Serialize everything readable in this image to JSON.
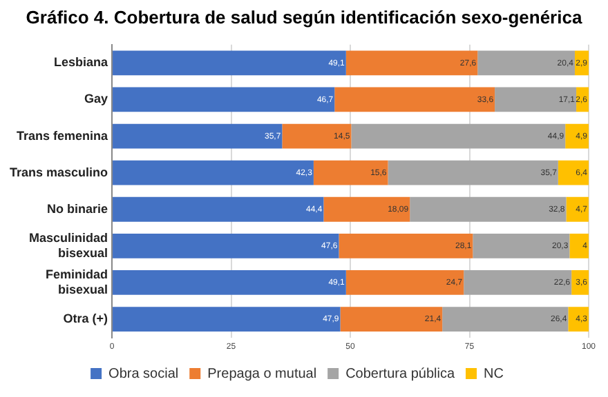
{
  "chart_data": {
    "type": "bar",
    "orientation": "horizontal",
    "stacked": true,
    "title": "Gráfico 4. Cobertura de salud según identificación sexo-genérica",
    "categories": [
      "Lesbiana",
      "Gay",
      "Trans femenina",
      "Trans masculino",
      "No binarie",
      "Masculinidad bisexual",
      "Feminidad bisexual",
      "Otra (+)"
    ],
    "series": [
      {
        "name": "Obra social",
        "color": "#4472c4",
        "values": [
          49.1,
          46.7,
          35.7,
          42.3,
          44.4,
          47.6,
          49.1,
          47.9
        ],
        "value_labels": [
          "49,1",
          "46,7",
          "35,7",
          "42,3",
          "44,4",
          "47,6",
          "49,1",
          "47,9"
        ]
      },
      {
        "name": "Prepaga o mutual",
        "color": "#ed7d31",
        "values": [
          27.6,
          33.6,
          14.5,
          15.6,
          18.09,
          28.1,
          24.7,
          21.4
        ],
        "value_labels": [
          "27,6",
          "33,6",
          "14,5",
          "15,6",
          "18,09",
          "28,1",
          "24,7",
          "21,4"
        ]
      },
      {
        "name": "Cobertura pública",
        "color": "#a5a5a5",
        "values": [
          20.4,
          17.1,
          44.9,
          35.7,
          32.8,
          20.3,
          22.6,
          26.4
        ],
        "value_labels": [
          "20,4",
          "17,1",
          "44,9",
          "35,7",
          "32,8",
          "20,3",
          "22,6",
          "26,4"
        ]
      },
      {
        "name": "NC",
        "color": "#ffc000",
        "values": [
          2.9,
          2.6,
          4.9,
          6.4,
          4.7,
          4,
          3.6,
          4.3
        ],
        "value_labels": [
          "2,9",
          "2,6",
          "4,9",
          "6,4",
          "4,7",
          "4",
          "3,6",
          "4,3"
        ]
      }
    ],
    "xlim": [
      0,
      100
    ],
    "xticks": [
      0,
      25,
      50,
      75,
      100
    ],
    "grid": "x",
    "legend": "bottom"
  }
}
